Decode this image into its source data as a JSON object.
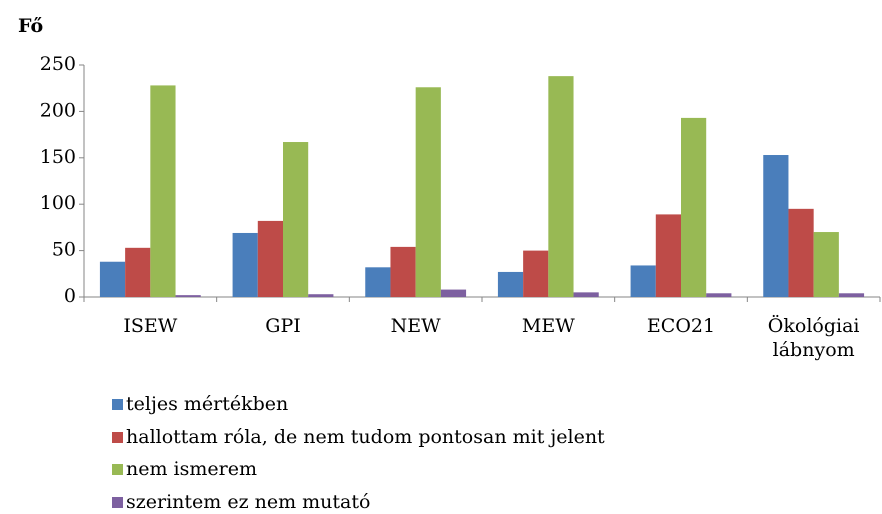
{
  "chart_data": {
    "type": "bar",
    "y_label": "Fő",
    "categories": [
      "ISEW",
      "GPI",
      "NEW",
      "MEW",
      "ECO21",
      "Ökológiai lábnyom"
    ],
    "series": [
      {
        "name": "teljes mértékben",
        "color": "#4a7ebb",
        "values": [
          38,
          69,
          32,
          27,
          34,
          153
        ]
      },
      {
        "name": "hallottam róla, de nem tudom pontosan  mit jelent",
        "color": "#be4b48",
        "values": [
          53,
          82,
          54,
          50,
          89,
          95
        ]
      },
      {
        "name": "nem ismerem",
        "color": "#98b954",
        "values": [
          228,
          167,
          226,
          238,
          193,
          70
        ]
      },
      {
        "name": "szerintem ez nem mutató",
        "color": "#7d60a0",
        "values": [
          2,
          3,
          8,
          5,
          4,
          4
        ]
      }
    ],
    "ylim": [
      0,
      250
    ],
    "yticks": [
      0,
      50,
      100,
      150,
      200,
      250
    ],
    "grid": false
  }
}
